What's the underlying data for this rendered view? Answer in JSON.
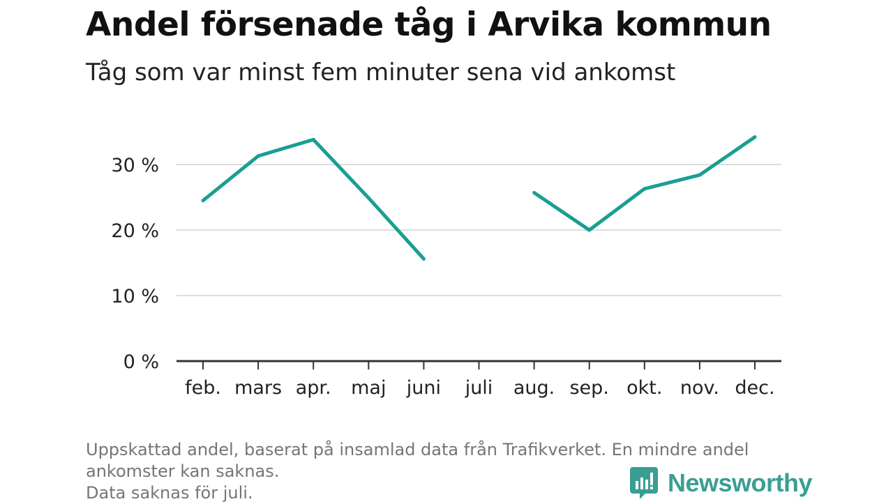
{
  "title": "Andel försenade tåg i Arvika kommun",
  "subtitle": "Tåg som var minst fem minuter sena vid ankomst",
  "footnote": {
    "line1": "Uppskattad andel, baserat på insamlad data från Trafikverket. En mindre andel ankomster kan saknas.",
    "line2": "Data saknas för juli."
  },
  "logo": {
    "text": "Newsworthy",
    "icon": "newsworthy-logo-icon",
    "color": "#3a9e94"
  },
  "chart_data": {
    "type": "line",
    "categories": [
      "feb.",
      "mars",
      "apr.",
      "maj",
      "juni",
      "juli",
      "aug.",
      "sep.",
      "okt.",
      "nov.",
      "dec."
    ],
    "series": [
      {
        "values": [
          24.5,
          31.3,
          33.8,
          24.9,
          15.6,
          null,
          25.7,
          20.0,
          26.3,
          28.4,
          34.2
        ]
      }
    ],
    "ylim": [
      0,
      40
    ],
    "yticks": [
      0,
      10,
      20,
      30
    ],
    "ytick_labels": [
      "0 %",
      "10 %",
      "20 %",
      "30 %"
    ],
    "grid": true,
    "colors": {
      "line": "#1a9e92",
      "grid": "#dddddd",
      "axis": "#333333"
    }
  }
}
